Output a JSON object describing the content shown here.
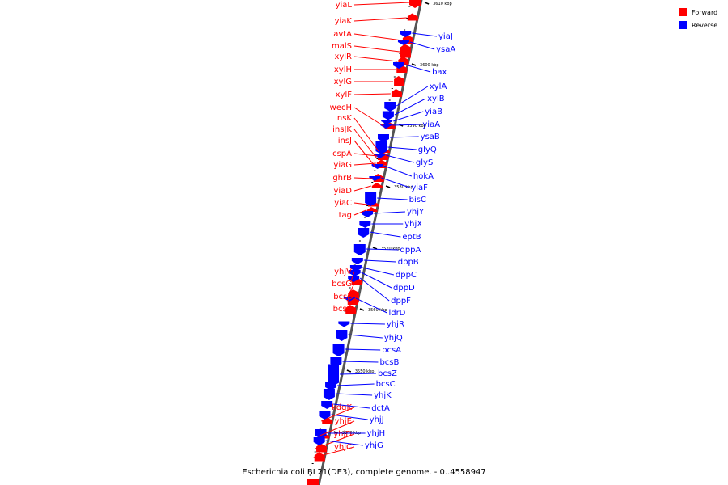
{
  "legend": {
    "forward_label": "Forward",
    "reverse_label": "Reverse",
    "forward_color": "#ff0000",
    "reverse_color": "#0000ff"
  },
  "caption": "Escherichia coli BL21(DE3), complete genome. - 0..4558947",
  "position_ticks": [
    "3610 kbp",
    "3600 kbp",
    "3590 kbp",
    "3580 kbp",
    "3570 kbp",
    "3560 kbp",
    "3550 kbp",
    "3540 kbp"
  ],
  "forward_genes": [
    "yiaL",
    "yiaK",
    "avtA",
    "malS",
    "xylR",
    "xylH",
    "xylG",
    "xylF",
    "wecH",
    "insK",
    "insJK",
    "insJ",
    "cspA",
    "yiaG",
    "ghrB",
    "yiaD",
    "yiaC",
    "tag",
    "yhjV",
    "bcsG",
    "bcsF",
    "bcsE",
    "kdgK",
    "yhjE",
    "yhjD",
    "yhjC"
  ],
  "reverse_genes": [
    "yiaJ",
    "ysaA",
    "bax",
    "xylA",
    "xylB",
    "yiaB",
    "yiaA",
    "ysaB",
    "glyQ",
    "glyS",
    "hokA",
    "yiaF",
    "bisC",
    "yhjY",
    "yhjX",
    "eptB",
    "dppA",
    "dppB",
    "dppC",
    "dppD",
    "dppF",
    "ldrD",
    "yhjR",
    "yhjQ",
    "bcsA",
    "bcsB",
    "bcsZ",
    "bcsC",
    "yhjK",
    "dctA",
    "yhjJ",
    "yhjH",
    "yhjG"
  ]
}
